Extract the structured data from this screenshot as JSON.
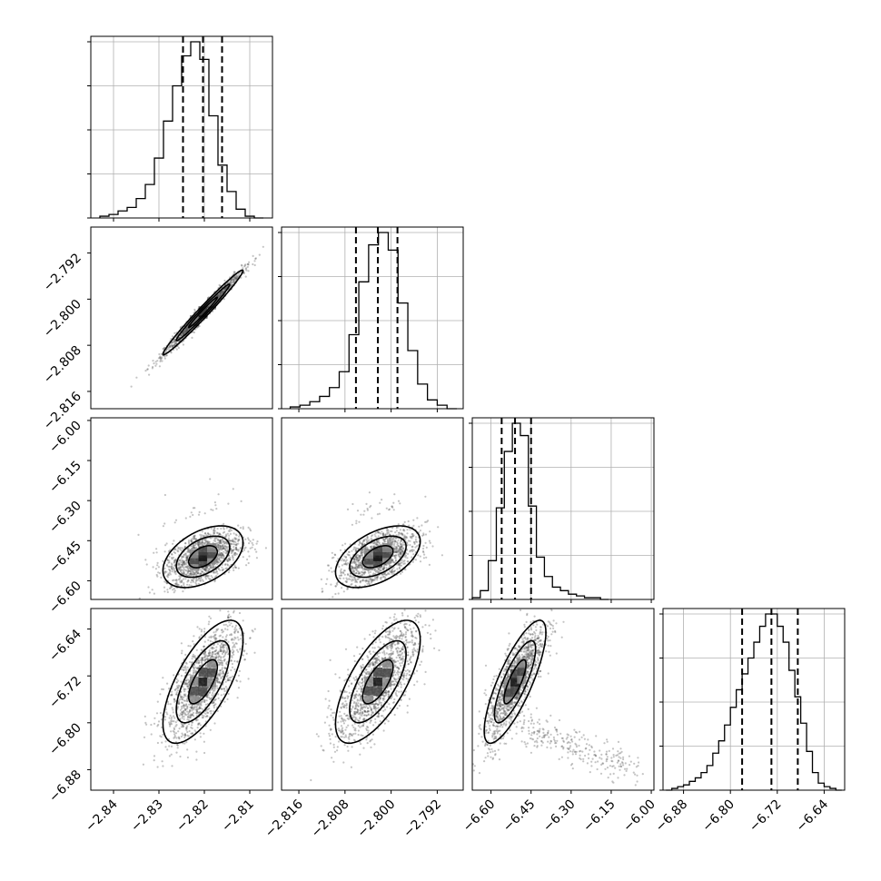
{
  "chart_data": {
    "type": "corner",
    "parameters": [
      {
        "range": [
          -2.845,
          -2.805
        ],
        "ticks": [
          -2.84,
          -2.83,
          -2.82,
          -2.81
        ],
        "tick_labels": [
          "−2.84",
          "−2.83",
          "−2.82",
          "−2.81"
        ],
        "quantiles": [
          -2.8247,
          -2.8203,
          -2.8161
        ]
      },
      {
        "range": [
          -2.819,
          -2.7875
        ],
        "ticks": [
          -2.816,
          -2.808,
          -2.8,
          -2.792
        ],
        "tick_labels": [
          "−2.816",
          "−2.808",
          "−2.800",
          "−2.792"
        ],
        "quantiles": [
          -2.8061,
          -2.8023,
          -2.7989
        ]
      },
      {
        "range": [
          -6.67,
          -5.99
        ],
        "ticks": [
          -6.6,
          -6.45,
          -6.3,
          -6.15,
          -6.0
        ],
        "tick_labels": [
          "−6.60",
          "−6.45",
          "−6.30",
          "−6.15",
          "−6.00"
        ],
        "quantiles": [
          -6.56,
          -6.51,
          -6.45
        ]
      },
      {
        "range": [
          -6.915,
          -6.605
        ],
        "ticks": [
          -6.88,
          -6.8,
          -6.72,
          -6.64
        ],
        "tick_labels": [
          "−6.88",
          "−6.80",
          "−6.72",
          "−6.64"
        ],
        "quantiles": [
          -6.78,
          -6.73,
          -6.685
        ]
      }
    ],
    "histograms": [
      {
        "edges": [
          -2.843,
          -2.841,
          -2.839,
          -2.837,
          -2.835,
          -2.833,
          -2.831,
          -2.829,
          -2.827,
          -2.825,
          -2.823,
          -2.821,
          -2.819,
          -2.817,
          -2.815,
          -2.813,
          -2.811,
          -2.809,
          -2.807
        ],
        "counts": [
          0.01,
          0.02,
          0.04,
          0.06,
          0.11,
          0.19,
          0.34,
          0.55,
          0.75,
          0.92,
          1.0,
          0.9,
          0.58,
          0.3,
          0.15,
          0.05,
          0.01,
          0.0
        ]
      },
      {
        "edges": [
          -2.8175,
          -2.8158,
          -2.8141,
          -2.8124,
          -2.8107,
          -2.809,
          -2.8073,
          -2.8056,
          -2.8039,
          -2.8022,
          -2.8005,
          -2.7988,
          -2.7971,
          -2.7954,
          -2.7937,
          -2.792,
          -2.7903,
          -2.7886
        ],
        "counts": [
          0.01,
          0.02,
          0.04,
          0.07,
          0.12,
          0.21,
          0.42,
          0.72,
          0.93,
          1.0,
          0.9,
          0.6,
          0.33,
          0.14,
          0.05,
          0.02,
          0.0
        ]
      },
      {
        "edges": [
          -6.67,
          -6.64,
          -6.61,
          -6.58,
          -6.55,
          -6.52,
          -6.49,
          -6.46,
          -6.43,
          -6.4,
          -6.37,
          -6.34,
          -6.31,
          -6.28,
          -6.25,
          -6.22,
          -6.19,
          -6.16
        ],
        "counts": [
          0.01,
          0.05,
          0.22,
          0.52,
          0.84,
          1.0,
          0.93,
          0.53,
          0.24,
          0.13,
          0.07,
          0.05,
          0.03,
          0.02,
          0.01,
          0.01,
          0.0
        ]
      },
      {
        "edges": [
          -6.91,
          -6.9,
          -6.89,
          -6.88,
          -6.87,
          -6.86,
          -6.85,
          -6.84,
          -6.83,
          -6.82,
          -6.81,
          -6.8,
          -6.79,
          -6.78,
          -6.77,
          -6.76,
          -6.75,
          -6.74,
          -6.73,
          -6.72,
          -6.71,
          -6.7,
          -6.69,
          -6.68,
          -6.67,
          -6.66,
          -6.65,
          -6.64,
          -6.63,
          -6.62,
          -6.61
        ],
        "counts": [
          0.0,
          0.01,
          0.02,
          0.03,
          0.05,
          0.07,
          0.1,
          0.14,
          0.21,
          0.28,
          0.37,
          0.47,
          0.57,
          0.66,
          0.75,
          0.84,
          0.93,
          1.0,
          1.0,
          0.93,
          0.84,
          0.68,
          0.53,
          0.38,
          0.22,
          0.1,
          0.04,
          0.02,
          0.01,
          0.0
        ]
      }
    ],
    "pairs": [
      {
        "row": 1,
        "col": 0,
        "mean": [
          -2.8203,
          -2.8023
        ],
        "sd": [
          0.0042,
          0.0035
        ],
        "rho": 0.985
      },
      {
        "row": 2,
        "col": 0,
        "mean": [
          -2.8203,
          -6.51
        ],
        "sd": [
          0.0042,
          0.055
        ],
        "rho": 0.45
      },
      {
        "row": 2,
        "col": 1,
        "mean": [
          -2.8023,
          -6.51
        ],
        "sd": [
          0.0035,
          0.055
        ],
        "rho": 0.5
      },
      {
        "row": 3,
        "col": 0,
        "mean": [
          -2.8203,
          -6.73
        ],
        "sd": [
          0.0042,
          0.05
        ],
        "rho": 0.68
      },
      {
        "row": 3,
        "col": 1,
        "mean": [
          -2.8023,
          -6.73
        ],
        "sd": [
          0.0035,
          0.05
        ],
        "rho": 0.68
      },
      {
        "row": 3,
        "col": 2,
        "mean": [
          -6.51,
          -6.73
        ],
        "sd": [
          0.055,
          0.05
        ],
        "rho": 0.8
      }
    ],
    "grid": true,
    "colors": {
      "hist": "#000000",
      "points": "#555555",
      "density": "#000000",
      "grid": "#b0b0b0"
    }
  }
}
